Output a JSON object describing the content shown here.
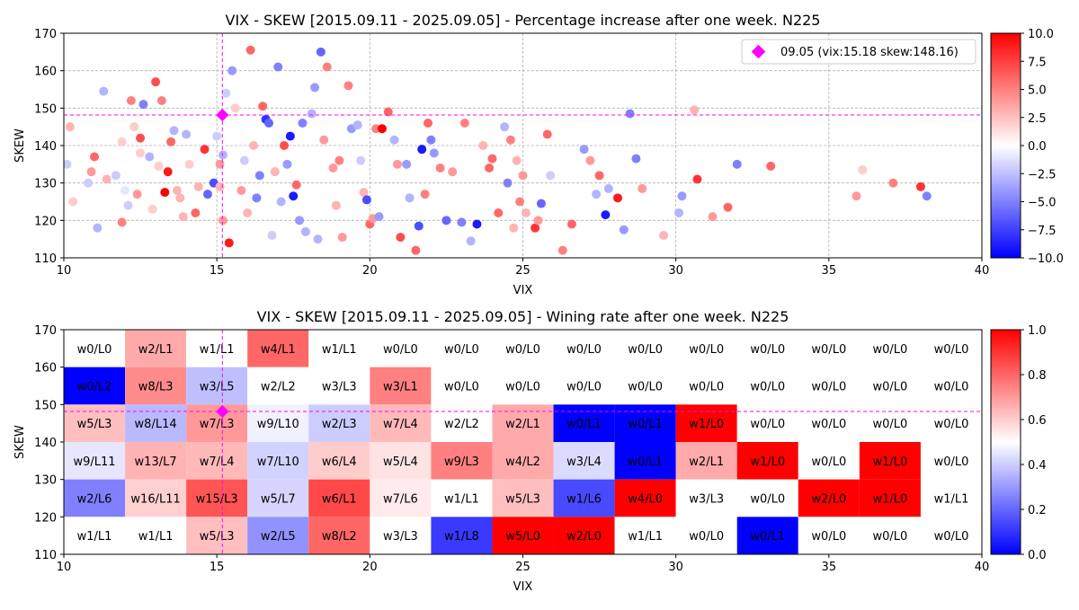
{
  "chart_data": [
    {
      "type": "scatter",
      "title": "VIX - SKEW [2015.09.11 - 2025.09.05]  - Percentage increase after one week. N225",
      "xlabel": "VIX",
      "ylabel": "SKEW",
      "xlim": [
        10,
        40
      ],
      "ylim": [
        110,
        170
      ],
      "xticks": [
        10,
        15,
        20,
        25,
        30,
        35,
        40
      ],
      "yticks": [
        110,
        120,
        130,
        140,
        150,
        160,
        170
      ],
      "grid": true,
      "legend": {
        "position": "top-right",
        "label": "09.05 (vix:15.18 skew:148.16)",
        "marker_color": "#ff00ff"
      },
      "current": {
        "x": 15.18,
        "y": 148.16
      },
      "colorbar": {
        "min": -10,
        "max": 10,
        "ticks": [
          "10.0",
          "7.5",
          "5.0",
          "2.5",
          "0.0",
          "−2.5",
          "−5.0",
          "−7.5",
          "−10.0"
        ],
        "colormap": "bwr"
      },
      "points": [
        [
          10.1,
          135,
          -2
        ],
        [
          10.2,
          145,
          3
        ],
        [
          10.3,
          125,
          2
        ],
        [
          10.8,
          130,
          -2
        ],
        [
          10.9,
          133,
          4
        ],
        [
          11.0,
          137,
          6
        ],
        [
          11.1,
          118,
          -3
        ],
        [
          11.3,
          154.5,
          -3
        ],
        [
          11.4,
          131,
          3
        ],
        [
          11.7,
          132,
          -2
        ],
        [
          11.9,
          119.5,
          5
        ],
        [
          11.9,
          141,
          2
        ],
        [
          12.0,
          128,
          -1
        ],
        [
          12.1,
          124,
          -2
        ],
        [
          12.2,
          152,
          5
        ],
        [
          12.3,
          145,
          2
        ],
        [
          12.4,
          127,
          4
        ],
        [
          12.5,
          138,
          2
        ],
        [
          12.5,
          142,
          7
        ],
        [
          12.6,
          151,
          -5
        ],
        [
          12.8,
          137,
          -3
        ],
        [
          12.9,
          123,
          2
        ],
        [
          13.0,
          157,
          7
        ],
        [
          13.1,
          134.5,
          2
        ],
        [
          13.2,
          152,
          5
        ],
        [
          13.3,
          127.5,
          10
        ],
        [
          13.4,
          133,
          9
        ],
        [
          13.5,
          141,
          6
        ],
        [
          13.6,
          144,
          -3
        ],
        [
          13.7,
          128,
          3
        ],
        [
          13.8,
          126,
          3
        ],
        [
          13.9,
          121,
          3
        ],
        [
          14.0,
          143,
          -3
        ],
        [
          14.1,
          135,
          2
        ],
        [
          14.3,
          122,
          6
        ],
        [
          14.4,
          129,
          3
        ],
        [
          14.6,
          139,
          8
        ],
        [
          14.7,
          127,
          -6
        ],
        [
          14.9,
          130,
          -7
        ],
        [
          15.0,
          142.5,
          -2
        ],
        [
          15.1,
          129,
          3
        ],
        [
          15.1,
          135,
          4
        ],
        [
          15.2,
          120,
          4
        ],
        [
          15.2,
          137.5,
          -3
        ],
        [
          15.3,
          154,
          -2
        ],
        [
          15.4,
          114,
          9
        ],
        [
          15.5,
          160,
          -4
        ],
        [
          15.6,
          150,
          2
        ],
        [
          15.8,
          128,
          4
        ],
        [
          15.9,
          136,
          -2
        ],
        [
          16.0,
          122,
          3
        ],
        [
          16.1,
          165.5,
          6
        ],
        [
          16.2,
          140,
          3
        ],
        [
          16.3,
          126,
          -5
        ],
        [
          16.4,
          132,
          -5
        ],
        [
          16.5,
          150.5,
          6
        ],
        [
          16.6,
          147,
          -8
        ],
        [
          16.7,
          146,
          -6
        ],
        [
          16.8,
          116,
          -2
        ],
        [
          16.9,
          133,
          3
        ],
        [
          17.0,
          161,
          -5
        ],
        [
          17.1,
          125,
          -3
        ],
        [
          17.2,
          140,
          7
        ],
        [
          17.3,
          135,
          -4
        ],
        [
          17.4,
          142.5,
          -9
        ],
        [
          17.5,
          126.5,
          -9
        ],
        [
          17.6,
          129.5,
          6
        ],
        [
          17.7,
          120,
          -4
        ],
        [
          17.8,
          146,
          -5
        ],
        [
          17.9,
          117,
          -3
        ],
        [
          18.1,
          148.5,
          -3
        ],
        [
          18.2,
          155.5,
          -4
        ],
        [
          18.3,
          115,
          -3
        ],
        [
          18.4,
          165,
          -6
        ],
        [
          18.5,
          141.5,
          4
        ],
        [
          18.6,
          161,
          5
        ],
        [
          18.8,
          134,
          4
        ],
        [
          18.9,
          124,
          3
        ],
        [
          19.0,
          136,
          5
        ],
        [
          19.1,
          115.5,
          4
        ],
        [
          19.3,
          156,
          5
        ],
        [
          19.4,
          144.5,
          -4
        ],
        [
          19.6,
          145.5,
          -3
        ],
        [
          19.7,
          136,
          -2
        ],
        [
          19.8,
          127.5,
          3
        ],
        [
          19.9,
          125.5,
          -7
        ],
        [
          20.0,
          119,
          6
        ],
        [
          20.1,
          120.5,
          4
        ],
        [
          20.2,
          144.5,
          5
        ],
        [
          20.3,
          121,
          -4
        ],
        [
          20.4,
          144.5,
          10
        ],
        [
          20.6,
          149,
          6
        ],
        [
          20.8,
          141.5,
          -3
        ],
        [
          20.9,
          135,
          4
        ],
        [
          21.0,
          115.5,
          7
        ],
        [
          21.2,
          135,
          -4
        ],
        [
          21.3,
          126,
          -3
        ],
        [
          21.5,
          112,
          6
        ],
        [
          21.6,
          118.5,
          -7
        ],
        [
          21.7,
          139,
          -9
        ],
        [
          21.8,
          127,
          5
        ],
        [
          21.9,
          146,
          6
        ],
        [
          22.0,
          141.5,
          -5
        ],
        [
          22.1,
          138,
          -4
        ],
        [
          22.3,
          134,
          5
        ],
        [
          22.5,
          120,
          -6
        ],
        [
          22.7,
          133,
          4
        ],
        [
          23.0,
          119.5,
          -5
        ],
        [
          23.1,
          146,
          5
        ],
        [
          23.3,
          114.5,
          -3
        ],
        [
          23.5,
          119,
          -9
        ],
        [
          23.7,
          140,
          3
        ],
        [
          23.9,
          134,
          6
        ],
        [
          24.0,
          136.5,
          6
        ],
        [
          24.2,
          122,
          6
        ],
        [
          24.4,
          145,
          -3
        ],
        [
          24.5,
          130,
          -5
        ],
        [
          24.6,
          141.5,
          5
        ],
        [
          24.7,
          118,
          3
        ],
        [
          24.8,
          136,
          3
        ],
        [
          24.9,
          125,
          5
        ],
        [
          25.0,
          132,
          4
        ],
        [
          25.1,
          122,
          3
        ],
        [
          25.4,
          118,
          8
        ],
        [
          25.5,
          120,
          4
        ],
        [
          25.6,
          124.5,
          -6
        ],
        [
          25.8,
          143,
          6
        ],
        [
          25.9,
          132,
          -2
        ],
        [
          26.3,
          112,
          5
        ],
        [
          26.6,
          119,
          6
        ],
        [
          27.0,
          139,
          -4
        ],
        [
          27.2,
          136,
          4
        ],
        [
          27.4,
          127,
          -3
        ],
        [
          27.5,
          132,
          6
        ],
        [
          27.7,
          121.5,
          -9
        ],
        [
          27.8,
          128.5,
          -3
        ],
        [
          28.1,
          126,
          9
        ],
        [
          28.3,
          117.5,
          -4
        ],
        [
          28.5,
          148.5,
          -5
        ],
        [
          28.7,
          136.5,
          -5
        ],
        [
          28.9,
          128.5,
          4
        ],
        [
          29.6,
          116,
          3
        ],
        [
          30.1,
          122,
          -3
        ],
        [
          30.2,
          126.5,
          -4
        ],
        [
          30.6,
          149.5,
          3
        ],
        [
          30.7,
          131,
          8
        ],
        [
          31.2,
          121,
          4
        ],
        [
          31.7,
          123.5,
          6
        ],
        [
          32.0,
          135,
          -5
        ],
        [
          33.1,
          134.5,
          6
        ],
        [
          35.9,
          126.5,
          4
        ],
        [
          36.1,
          133.5,
          2
        ],
        [
          37.1,
          130,
          5
        ],
        [
          38.0,
          129,
          8
        ],
        [
          38.2,
          126.5,
          -5
        ]
      ]
    },
    {
      "type": "heatmap",
      "title": "VIX - SKEW [2015.09.11 - 2025.09.05]  - Wining rate after one week. N225",
      "xlabel": "VIX",
      "ylabel": "SKEW",
      "xlim": [
        10,
        40
      ],
      "ylim": [
        110,
        170
      ],
      "xticks": [
        10,
        15,
        20,
        25,
        30,
        35,
        40
      ],
      "yticks": [
        110,
        120,
        130,
        140,
        150,
        160,
        170
      ],
      "x_bins": [
        10,
        12,
        14,
        16,
        18,
        20,
        22,
        24,
        26,
        28,
        30,
        32,
        34,
        36,
        38,
        40
      ],
      "y_bins": [
        110,
        120,
        130,
        140,
        150,
        160,
        170
      ],
      "current": {
        "x": 15.18,
        "y": 148.16
      },
      "colorbar": {
        "min": 0,
        "max": 1,
        "ticks": [
          "1.0",
          "0.8",
          "0.6",
          "0.4",
          "0.2",
          "0.0"
        ],
        "colormap": "bwr"
      },
      "rows": [
        [
          "w0/L0",
          "w2/L1",
          "w1/L1",
          "w4/L1",
          "w1/L1",
          "w0/L0",
          "w0/L0",
          "w0/L0",
          "w0/L0",
          "w0/L0",
          "w0/L0",
          "w0/L0",
          "w0/L0",
          "w0/L0",
          "w0/L0"
        ],
        [
          "w0/L2",
          "w8/L3",
          "w3/L5",
          "w2/L2",
          "w3/L3",
          "w3/L1",
          "w0/L0",
          "w0/L0",
          "w0/L0",
          "w0/L0",
          "w0/L0",
          "w0/L0",
          "w0/L0",
          "w0/L0",
          "w0/L0"
        ],
        [
          "w5/L3",
          "w8/L14",
          "w7/L3",
          "w9/L10",
          "w2/L3",
          "w7/L4",
          "w2/L2",
          "w2/L1",
          "w0/L1",
          "w0/L1",
          "w1/L0",
          "w0/L0",
          "w0/L0",
          "w0/L0",
          "w0/L0"
        ],
        [
          "w9/L11",
          "w13/L7",
          "w7/L4",
          "w7/L10",
          "w6/L4",
          "w5/L4",
          "w9/L3",
          "w4/L2",
          "w3/L4",
          "w0/L1",
          "w2/L1",
          "w1/L0",
          "w0/L0",
          "w1/L0",
          "w0/L0"
        ],
        [
          "w2/L6",
          "w16/L11",
          "w15/L3",
          "w5/L7",
          "w6/L1",
          "w7/L6",
          "w1/L1",
          "w5/L3",
          "w1/L6",
          "w4/L0",
          "w3/L3",
          "w0/L0",
          "w2/L0",
          "w1/L0",
          "w1/L1"
        ],
        [
          "w1/L1",
          "w1/L1",
          "w5/L3",
          "w2/L5",
          "w8/L2",
          "w3/L3",
          "w1/L8",
          "w5/L0",
          "w2/L0",
          "w1/L1",
          "w0/L0",
          "w0/L1",
          "w0/L0",
          "w0/L0",
          "w0/L0"
        ]
      ]
    }
  ]
}
